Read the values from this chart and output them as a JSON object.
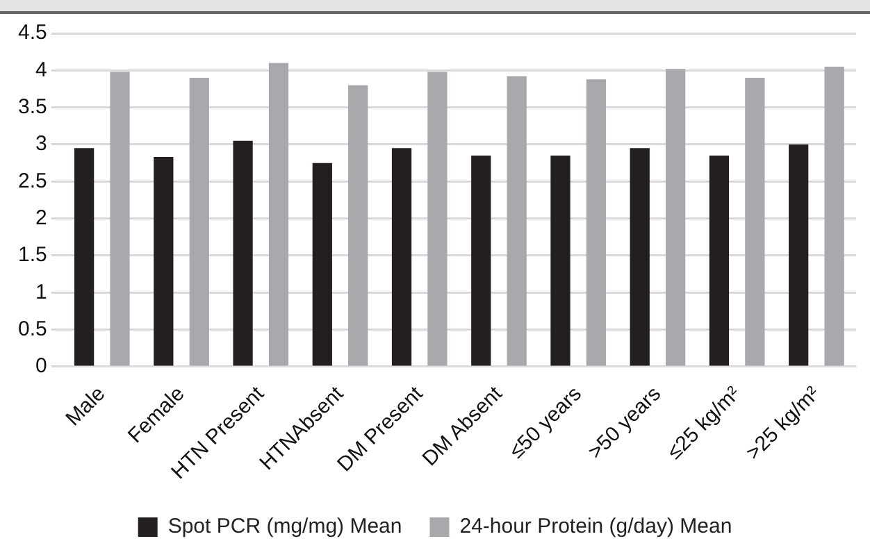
{
  "chart_data": {
    "type": "bar",
    "categories": [
      "Male",
      "Female",
      "HTN Present",
      "HTNAbsent",
      "DM Present",
      "DM Absent",
      "≤50 years",
      ">50 years",
      "≤25 kg/m²",
      ">25 kg/m²"
    ],
    "series": [
      {
        "name": "Spot PCR (mg/mg) Mean",
        "color": "#231f20",
        "values": [
          2.95,
          2.83,
          3.05,
          2.75,
          2.95,
          2.85,
          2.85,
          2.95,
          2.85,
          3.0
        ]
      },
      {
        "name": "24-hour Protein (g/day) Mean",
        "color": "#a7a9ac",
        "values": [
          3.98,
          3.9,
          4.1,
          3.8,
          3.98,
          3.92,
          3.88,
          4.02,
          3.9,
          4.05
        ]
      }
    ],
    "ylim": [
      0,
      4.5
    ],
    "yticks": [
      0,
      0.5,
      1,
      1.5,
      2,
      2.5,
      3,
      3.5,
      4,
      4.5
    ],
    "grid": "y",
    "legend": "bottom"
  }
}
